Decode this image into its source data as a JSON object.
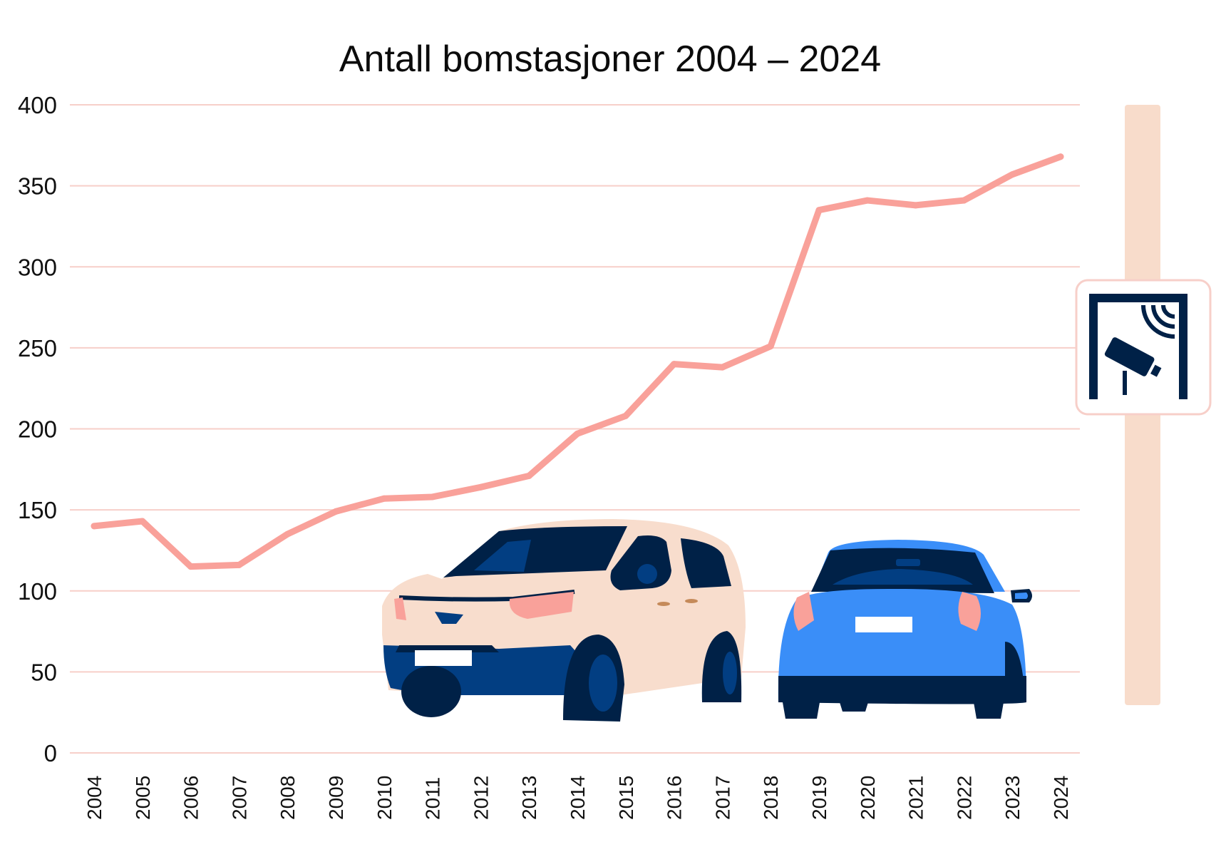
{
  "colors": {
    "line": "#f9a19a",
    "grid": "#f7cfc9",
    "pole": "#f8dccb",
    "sign_frame": "#002147",
    "van_body": "#f8ddcd",
    "van_dark": "#023e82",
    "van_window": "#002147",
    "car_body": "#3a8ef8",
    "car_dark": "#002147",
    "light": "#f9a19a"
  },
  "icons": {
    "sign": "toll-camera-sign-icon",
    "van": "van-illustration",
    "car": "car-illustration"
  },
  "chart_data": {
    "type": "line",
    "title": "Antall bomstasjoner 2004 – 2024",
    "xlabel": "",
    "ylabel": "",
    "ylim": [
      0,
      400
    ],
    "yticks": [
      0,
      50,
      100,
      150,
      200,
      250,
      300,
      350,
      400
    ],
    "grid": true,
    "legend": "none",
    "categories": [
      "2004",
      "2005",
      "2006",
      "2007",
      "2008",
      "2009",
      "2010",
      "2011",
      "2012",
      "2013",
      "2014",
      "2015",
      "2016",
      "2017",
      "2018",
      "2019",
      "2020",
      "2021",
      "2022",
      "2023",
      "2024"
    ],
    "series": [
      {
        "values": [
          140,
          143,
          115,
          116,
          135,
          149,
          157,
          158,
          164,
          171,
          197,
          208,
          240,
          238,
          251,
          335,
          341,
          338,
          341,
          357,
          368
        ]
      }
    ]
  }
}
